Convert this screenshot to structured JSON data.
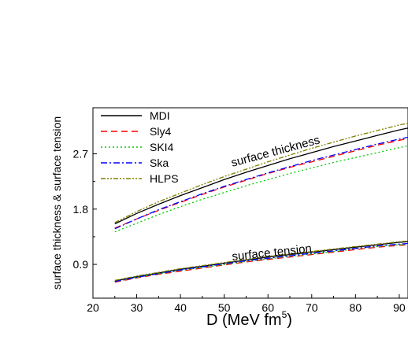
{
  "chart_data": {
    "type": "line",
    "xlabel": "D (MeV fm",
    "xlabel_sup": "5",
    "xlabel_close": ")",
    "ylabel": "surface thickness & surface tension",
    "xlim": [
      20,
      92
    ],
    "ylim": [
      0.35,
      3.45
    ],
    "xticks": [
      20,
      30,
      40,
      50,
      60,
      70,
      80,
      90
    ],
    "yticks": [
      0.9,
      1.8,
      2.7
    ],
    "xtick_labels": [
      "20",
      "30",
      "40",
      "50",
      "60",
      "70",
      "80",
      "90"
    ],
    "ytick_labels": [
      "0.9",
      "1.8",
      "2.7"
    ],
    "legend": {
      "placement": "top-left"
    },
    "annotations": [
      {
        "text": "surface thickness"
      },
      {
        "text": "surface tension"
      }
    ],
    "x": [
      25,
      30,
      35,
      40,
      45,
      50,
      55,
      60,
      65,
      70,
      75,
      80,
      85,
      90,
      92
    ],
    "series": [
      {
        "name": "MDI",
        "color": "#000000",
        "dash": "solid",
        "thickness": [
          1.56,
          1.73,
          1.88,
          2.02,
          2.15,
          2.28,
          2.4,
          2.51,
          2.62,
          2.72,
          2.82,
          2.91,
          3.0,
          3.09,
          3.12
        ],
        "tension": [
          0.63,
          0.7,
          0.76,
          0.82,
          0.87,
          0.92,
          0.97,
          1.02,
          1.06,
          1.1,
          1.14,
          1.18,
          1.22,
          1.26,
          1.27
        ]
      },
      {
        "name": "Sly4",
        "color": "#ff0000",
        "dash": "8,5",
        "thickness": [
          1.49,
          1.64,
          1.78,
          1.91,
          2.04,
          2.16,
          2.27,
          2.38,
          2.48,
          2.57,
          2.66,
          2.75,
          2.84,
          2.92,
          2.95
        ],
        "tension": [
          0.61,
          0.68,
          0.74,
          0.79,
          0.84,
          0.89,
          0.94,
          0.98,
          1.02,
          1.06,
          1.1,
          1.14,
          1.18,
          1.21,
          1.22
        ]
      },
      {
        "name": "SKI4",
        "color": "#00cc00",
        "dash": "2,3",
        "thickness": [
          1.43,
          1.57,
          1.71,
          1.84,
          1.96,
          2.07,
          2.18,
          2.28,
          2.38,
          2.47,
          2.56,
          2.64,
          2.72,
          2.8,
          2.83
        ],
        "tension": [
          0.62,
          0.69,
          0.75,
          0.8,
          0.85,
          0.9,
          0.95,
          0.99,
          1.03,
          1.07,
          1.11,
          1.15,
          1.19,
          1.22,
          1.23
        ]
      },
      {
        "name": "Ska",
        "color": "#0000ff",
        "dash": "8,3,2,3",
        "thickness": [
          1.48,
          1.64,
          1.79,
          1.92,
          2.05,
          2.17,
          2.28,
          2.39,
          2.49,
          2.59,
          2.68,
          2.77,
          2.86,
          2.94,
          2.97
        ],
        "tension": [
          0.62,
          0.69,
          0.75,
          0.81,
          0.86,
          0.91,
          0.96,
          1.0,
          1.04,
          1.08,
          1.12,
          1.16,
          1.2,
          1.23,
          1.24
        ]
      },
      {
        "name": "HLPS",
        "color": "#808000",
        "dash": "6,2,2,2,2,2",
        "thickness": [
          1.58,
          1.76,
          1.92,
          2.06,
          2.2,
          2.33,
          2.45,
          2.57,
          2.68,
          2.79,
          2.89,
          2.99,
          3.08,
          3.17,
          3.2
        ],
        "tension": [
          0.64,
          0.71,
          0.77,
          0.83,
          0.88,
          0.93,
          0.98,
          1.03,
          1.07,
          1.11,
          1.15,
          1.19,
          1.23,
          1.27,
          1.28
        ]
      }
    ]
  }
}
